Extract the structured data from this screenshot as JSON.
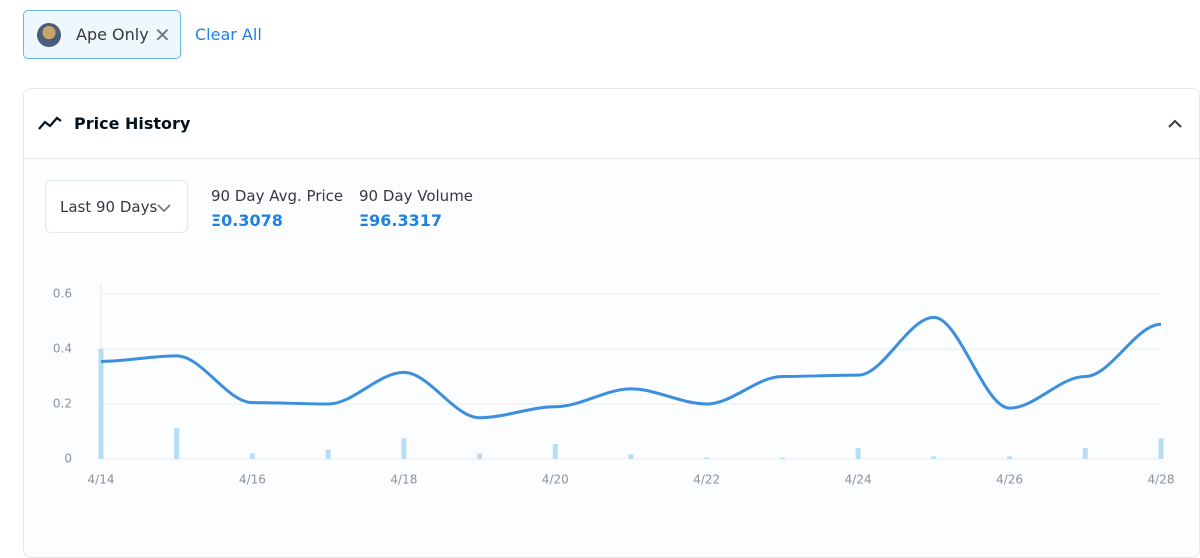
{
  "filter": {
    "chip": "Ape Only",
    "clear": "Clear All"
  },
  "panel": {
    "title": "Price History",
    "range": "Last 90 Days",
    "stats": [
      {
        "label": "90 Day Avg. Price",
        "value": "Ξ0.3078"
      },
      {
        "label": "90 Day Volume",
        "value": "Ξ96.3317"
      }
    ]
  },
  "chart_data": {
    "type": "line",
    "categories": [
      "4/14",
      null,
      "4/16",
      null,
      "4/18",
      null,
      "4/20",
      null,
      "4/22",
      null,
      "4/24",
      null,
      "4/26",
      null,
      "4/28"
    ],
    "series": [
      {
        "color": "#3b8fdd",
        "values": [
          0.355,
          0.375,
          0.205,
          0.2,
          0.315,
          0.15,
          0.19,
          0.255,
          0.2,
          0.3,
          0.305,
          0.515,
          0.185,
          0.3,
          0.49
        ]
      },
      {
        "type": "bar",
        "color": "#b9dcf5",
        "values": [
          0.4,
          0.113,
          0.02,
          0.035,
          0.075,
          0.02,
          0.055,
          0.017,
          0.005,
          0.005,
          0.04,
          0.01,
          0.01,
          0.04,
          0.075
        ]
      }
    ],
    "ylim": [
      0,
      0.6
    ],
    "yticks": [
      0,
      0.2,
      0.4,
      0.6
    ],
    "grid": true
  }
}
